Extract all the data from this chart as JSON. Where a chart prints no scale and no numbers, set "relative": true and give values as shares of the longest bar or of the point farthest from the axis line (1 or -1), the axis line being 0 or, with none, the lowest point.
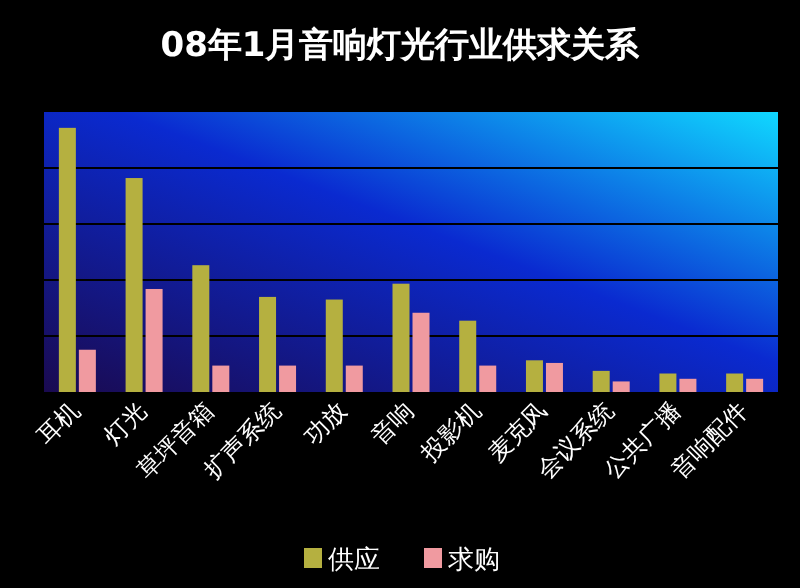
{
  "chart_data": {
    "type": "bar",
    "title": "08年1月音响灯光行业供求关系",
    "relative": true,
    "grid": "y",
    "legend": "bottom",
    "categories": [
      "耳机",
      "灯光",
      "草坪音箱",
      "扩声系统",
      "功放",
      "音响",
      "投影机",
      "麦克风",
      "会议系统",
      "公共广播",
      "音响配件"
    ],
    "series": [
      {
        "name": "供应",
        "color": "#b5b040",
        "values": [
          1,
          0.81,
          0.48,
          0.36,
          0.35,
          0.41,
          0.27,
          0.12,
          0.08,
          0.07,
          0.07
        ]
      },
      {
        "name": "求购",
        "color": "#f09aa0",
        "values": [
          0.16,
          0.39,
          0.1,
          0.1,
          0.1,
          0.3,
          0.1,
          0.11,
          0.04,
          0.05,
          0.05
        ]
      }
    ]
  }
}
